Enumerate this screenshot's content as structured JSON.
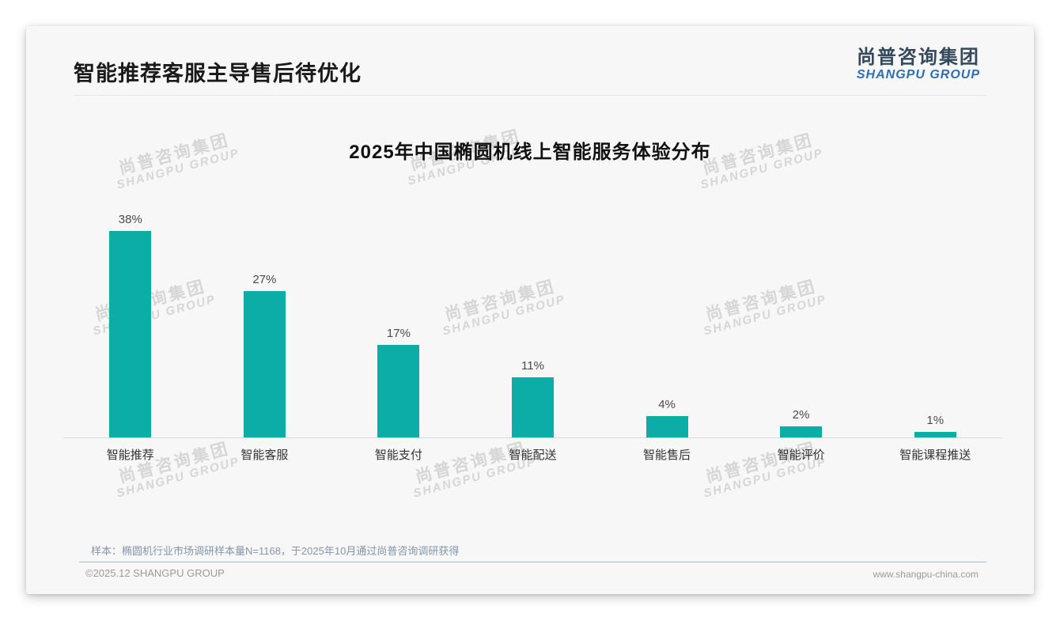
{
  "page_title": "智能推荐客服主导售后待优化",
  "logo": {
    "cn": "尚普咨询集团",
    "en": "SHANGPU GROUP"
  },
  "watermark": {
    "cn": "尚普咨询集团",
    "en": "SHANGPU GROUP"
  },
  "chart_data": {
    "type": "bar",
    "title": "2025年中国椭圆机线上智能服务体验分布",
    "categories": [
      "智能推荐",
      "智能客服",
      "智能支付",
      "智能配送",
      "智能售后",
      "智能评价",
      "智能课程推送"
    ],
    "values": [
      38,
      27,
      17,
      11,
      4,
      2,
      1
    ],
    "data_labels": [
      "38%",
      "27%",
      "17%",
      "11%",
      "4%",
      "2%",
      "1%"
    ],
    "unit": "%",
    "ylim": [
      0,
      40
    ],
    "xlabel": "",
    "ylabel": "",
    "grid": false,
    "legend": "none",
    "bar_color": "#0bada6"
  },
  "note": "样本：椭圆机行业市场调研样本量N=1168，于2025年10月通过尚普咨询调研获得",
  "footer": {
    "left": "©2025.12 SHANGPU GROUP",
    "right": "www.shangpu-china.com"
  },
  "colors": {
    "bar": "#0bada6",
    "logo_cn": "#34495e",
    "logo_en": "#2d6fb7",
    "watermark": "#d6d6d6"
  }
}
